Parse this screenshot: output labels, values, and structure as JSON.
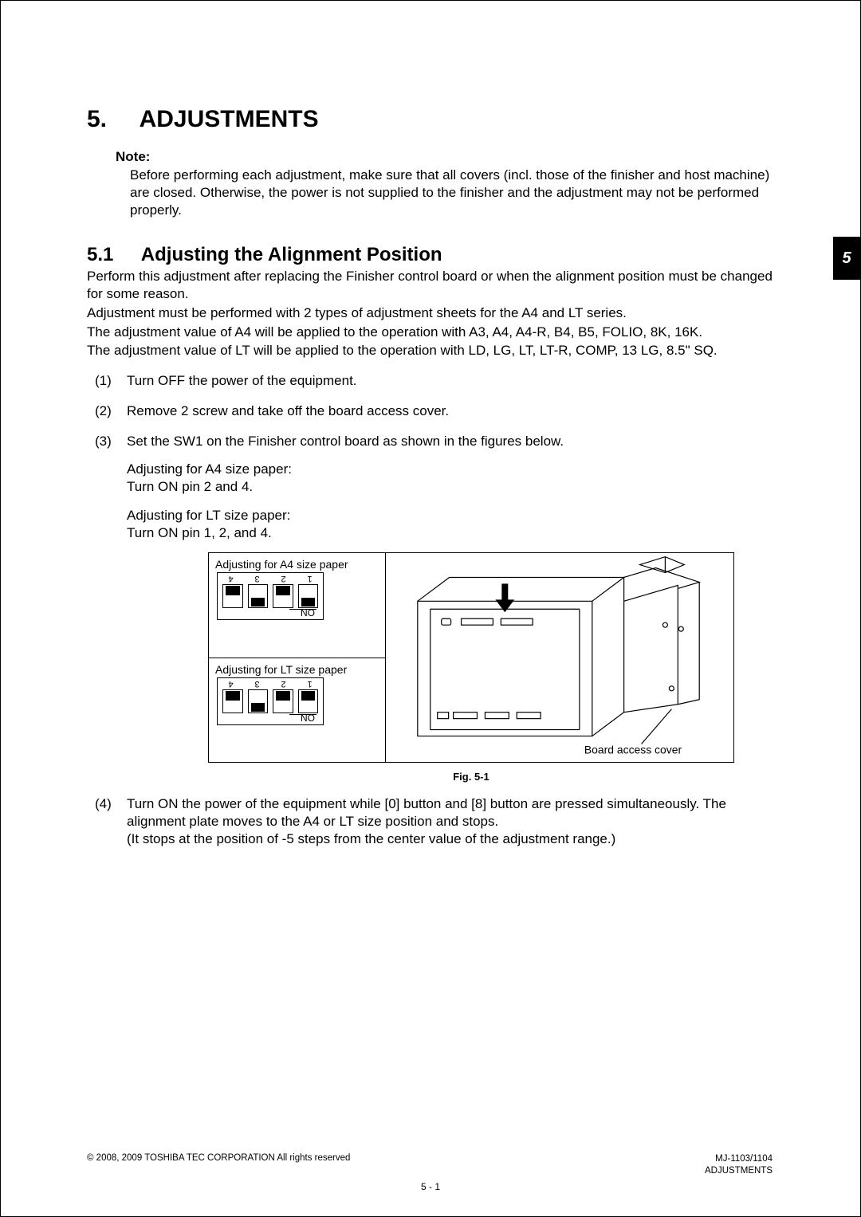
{
  "tab": {
    "label": "5"
  },
  "chapter": {
    "number": "5.",
    "title": "ADJUSTMENTS"
  },
  "note": {
    "label": "Note:",
    "body": "Before performing each adjustment, make sure that all covers (incl. those of the finisher and host machine) are closed. Otherwise, the power is not supplied to the finisher and the adjustment may not be performed properly."
  },
  "section": {
    "number": "5.1",
    "title": "Adjusting the Alignment Position"
  },
  "intro": {
    "p1": "Perform this adjustment after replacing the Finisher control board or when the alignment position must be changed for some reason.",
    "p2": "Adjustment must be performed with 2 types of adjustment sheets for the A4 and LT series.",
    "p3": "The adjustment value of A4 will be applied to the operation with A3, A4, A4-R, B4, B5, FOLIO, 8K, 16K.",
    "p4": "The adjustment value of LT will be applied to the operation with LD, LG, LT, LT-R, COMP, 13 LG, 8.5\" SQ."
  },
  "steps": {
    "s1n": "(1)",
    "s1": "Turn OFF the power of the equipment.",
    "s2n": "(2)",
    "s2": "Remove 2 screw and take off the board access cover.",
    "s3n": "(3)",
    "s3": "Set the SW1 on the Finisher control board as shown in the figures below.",
    "s3a": "Adjusting for A4 size paper:",
    "s3b": "Turn ON pin 2 and 4.",
    "s3c": "Adjusting for LT size paper:",
    "s3d": "Turn ON pin 1, 2, and 4.",
    "s4n": "(4)",
    "s4": "Turn ON the power of the equipment while [0] button and [8] button are pressed simultaneously. The alignment plate moves to the A4 or LT size position and stops.",
    "s4a": "(It stops at the position of -5 steps from the center value of the adjustment range.)"
  },
  "figure": {
    "leftTitleA4": "Adjusting for A4 size paper",
    "leftTitleLT": "Adjusting for LT size paper",
    "dipDigits": [
      "1",
      "2",
      "3",
      "4"
    ],
    "dipNO": "NO",
    "a4_states": [
      "off",
      "on",
      "off",
      "on"
    ],
    "lt_states": [
      "on",
      "on",
      "off",
      "on"
    ],
    "callout": "Board access cover",
    "caption": "Fig. 5-1"
  },
  "footer": {
    "copyright": "© 2008, 2009 TOSHIBA TEC CORPORATION All rights reserved",
    "model": "MJ-1103/1104",
    "section": "ADJUSTMENTS",
    "page": "5 - 1"
  },
  "colors": {
    "text": "#000000",
    "bg": "#ffffff",
    "tabBg": "#000000",
    "tabFg": "#ffffff"
  }
}
